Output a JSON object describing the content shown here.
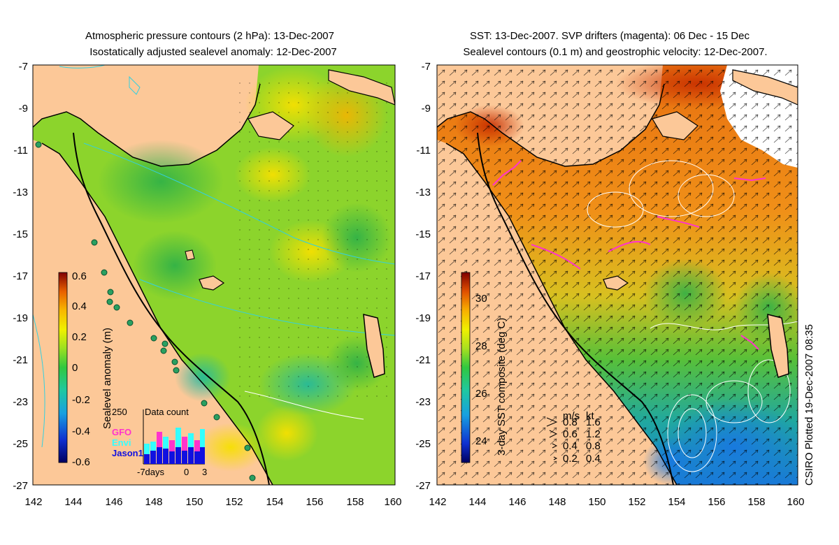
{
  "left_panel": {
    "title_line1": "Atmospheric pressure contours (2 hPa): 13-Dec-2007",
    "title_line2": "Isostatically adjusted sealevel anomaly: 12-Dec-2007",
    "colorbar": {
      "label": "Sealevel anomaly (m)",
      "ticks": [
        "0.6",
        "0.4",
        "0.2",
        "0",
        "-0.2",
        "-0.4",
        "-0.6"
      ]
    },
    "inset": {
      "title": "Data count",
      "ymax": "250",
      "xlabels": [
        "-7days",
        "0",
        "3"
      ],
      "legend": [
        {
          "name": "GFO",
          "color": "#ff33cc"
        },
        {
          "name": "Envi",
          "color": "#33ffff"
        },
        {
          "name": "Jason1",
          "color": "#1010e0"
        }
      ]
    }
  },
  "right_panel": {
    "title_line1": "SST: 13-Dec-2007. SVP drifters (magenta): 06 Dec - 15 Dec",
    "title_line2": "Sealevel contours (0.1 m) and geostrophic velocity: 12-Dec-2007.",
    "colorbar": {
      "label": "3-day SST composite (deg C)",
      "ticks": [
        "30",
        "28",
        "26",
        "24"
      ]
    },
    "velocity_legend": {
      "header_ms": "m/s",
      "header_kt": "kt",
      "rows": [
        {
          "ms": "0.8",
          "kt": "1.6"
        },
        {
          "ms": "0.6",
          "kt": "1.2"
        },
        {
          "ms": "0.4",
          "kt": "0.8"
        },
        {
          "ms": "0.2",
          "kt": "0.4"
        }
      ]
    }
  },
  "axes": {
    "lat_ticks": [
      "-7",
      "-9",
      "-11",
      "-13",
      "-15",
      "-17",
      "-19",
      "-21",
      "-23",
      "-25",
      "-27"
    ],
    "lon_ticks": [
      "142",
      "144",
      "146",
      "148",
      "150",
      "152",
      "154",
      "156",
      "158",
      "160"
    ],
    "lat_range": [
      -27,
      -7
    ],
    "lon_range": [
      142,
      160
    ]
  },
  "credit": "CSIRO Plotted 19-Dec-2007 08:35",
  "colors": {
    "land": "#fcc898",
    "coast": "#000000",
    "sla_green": "#5ccc2c",
    "sst_orange": "#f0901a"
  }
}
